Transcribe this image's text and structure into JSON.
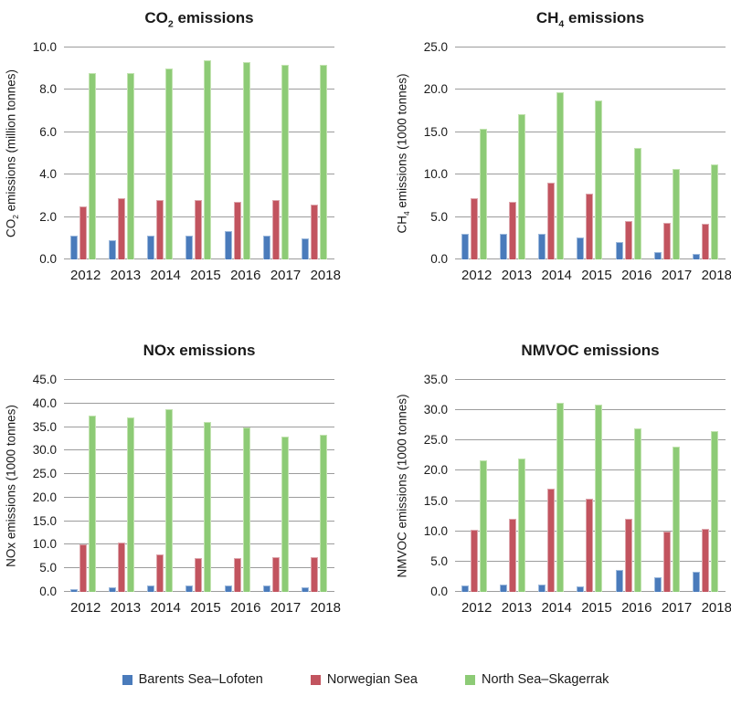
{
  "page": {
    "background": "#ffffff",
    "text_color": "#1a1a1a",
    "gridline_color": "#9c9c9c"
  },
  "years": [
    "2012",
    "2013",
    "2014",
    "2015",
    "2016",
    "2017",
    "2018"
  ],
  "legend": {
    "items": [
      {
        "label": "Barents Sea–Lofoten",
        "color": "#4a7bbb"
      },
      {
        "label": "Norwegian Sea",
        "color": "#c2545f"
      },
      {
        "label": "North Sea–Skagerrak",
        "color": "#8dcb76"
      }
    ]
  },
  "chart_data": [
    {
      "type": "bar",
      "title": "CO₂ emissions",
      "title_parts": [
        {
          "text": "CO"
        },
        {
          "text": "2",
          "sub": true
        },
        {
          "text": " emissions"
        }
      ],
      "ylabel": "CO₂ emissions (million tonnes)",
      "ylabel_parts": [
        {
          "text": "CO"
        },
        {
          "text": "2",
          "sub": true
        },
        {
          "text": " emissions (million tonnes)"
        }
      ],
      "xlabel": "",
      "categories": [
        "2012",
        "2013",
        "2014",
        "2015",
        "2016",
        "2017",
        "2018"
      ],
      "ylim": [
        0,
        10
      ],
      "ystep": 2,
      "grid": true,
      "legend_position": "shared-bottom",
      "series": [
        {
          "name": "Barents Sea–Lofoten",
          "color": "#4a7bbb",
          "color_light": "#9db9dc",
          "values": [
            1.1,
            0.9,
            1.1,
            1.1,
            1.35,
            1.1,
            1.0
          ]
        },
        {
          "name": "Norwegian Sea",
          "color": "#c2545f",
          "color_light": "#dda6ac",
          "values": [
            2.5,
            2.9,
            2.8,
            2.8,
            2.7,
            2.8,
            2.6
          ]
        },
        {
          "name": "North Sea–Skagerrak",
          "color": "#8dcb76",
          "color_light": "#c2e3b0",
          "values": [
            8.8,
            8.8,
            9.0,
            9.4,
            9.3,
            9.2,
            9.2
          ]
        }
      ]
    },
    {
      "type": "bar",
      "title": "CH₄ emissions",
      "title_parts": [
        {
          "text": "CH"
        },
        {
          "text": "4",
          "sub": true
        },
        {
          "text": " emissions"
        }
      ],
      "ylabel": "CH₄ emissions (1000 tonnes)",
      "ylabel_parts": [
        {
          "text": "CH"
        },
        {
          "text": "4",
          "sub": true
        },
        {
          "text": " emissions (1000 tonnes)"
        }
      ],
      "xlabel": "",
      "categories": [
        "2012",
        "2013",
        "2014",
        "2015",
        "2016",
        "2017",
        "2018"
      ],
      "ylim": [
        0,
        25
      ],
      "ystep": 5,
      "grid": true,
      "legend_position": "shared-bottom",
      "series": [
        {
          "name": "Barents Sea–Lofoten",
          "color": "#4a7bbb",
          "color_light": "#9db9dc",
          "values": [
            3.0,
            3.0,
            3.0,
            2.6,
            2.0,
            0.9,
            0.6
          ]
        },
        {
          "name": "Norwegian Sea",
          "color": "#c2545f",
          "color_light": "#dda6ac",
          "values": [
            7.2,
            6.8,
            9.1,
            7.8,
            4.5,
            4.3,
            4.2
          ]
        },
        {
          "name": "North Sea–Skagerrak",
          "color": "#8dcb76",
          "color_light": "#c2e3b0",
          "values": [
            15.4,
            17.1,
            19.7,
            18.8,
            13.1,
            10.7,
            11.2
          ]
        }
      ]
    },
    {
      "type": "bar",
      "title": "NOx emissions",
      "title_parts": [
        {
          "text": "NOx emissions"
        }
      ],
      "ylabel": "NOx emissions (1000 tonnes)",
      "ylabel_parts": [
        {
          "text": "NOx emissions (1000 tonnes)"
        }
      ],
      "xlabel": "",
      "categories": [
        "2012",
        "2013",
        "2014",
        "2015",
        "2016",
        "2017",
        "2018"
      ],
      "ylim": [
        0,
        45
      ],
      "ystep": 5,
      "grid": true,
      "legend_position": "shared-bottom",
      "series": [
        {
          "name": "Barents Sea–Lofoten",
          "color": "#4a7bbb",
          "color_light": "#9db9dc",
          "values": [
            0.5,
            0.9,
            1.3,
            1.35,
            1.35,
            1.35,
            0.9
          ]
        },
        {
          "name": "Norwegian Sea",
          "color": "#c2545f",
          "color_light": "#dda6ac",
          "values": [
            10.1,
            10.5,
            7.9,
            7.1,
            7.1,
            7.4,
            7.4
          ]
        },
        {
          "name": "North Sea–Skagerrak",
          "color": "#8dcb76",
          "color_light": "#c2e3b0",
          "values": [
            37.5,
            37.1,
            38.7,
            36.0,
            34.9,
            33.0,
            33.3
          ]
        }
      ]
    },
    {
      "type": "bar",
      "title": "NMVOC emissions",
      "title_parts": [
        {
          "text": "NMVOC emissions"
        }
      ],
      "ylabel": "NMVOC emissions (1000 tonnes)",
      "ylabel_parts": [
        {
          "text": "NMVOC emissions (1000 tonnes)"
        }
      ],
      "xlabel": "",
      "categories": [
        "2012",
        "2013",
        "2014",
        "2015",
        "2016",
        "2017",
        "2018"
      ],
      "ylim": [
        0,
        35
      ],
      "ystep": 5,
      "grid": true,
      "legend_position": "shared-bottom",
      "series": [
        {
          "name": "Barents Sea–Lofoten",
          "color": "#4a7bbb",
          "color_light": "#9db9dc",
          "values": [
            1.1,
            1.2,
            1.2,
            0.9,
            3.6,
            2.4,
            3.3
          ]
        },
        {
          "name": "Norwegian Sea",
          "color": "#c2545f",
          "color_light": "#dda6ac",
          "values": [
            10.2,
            12.0,
            17.0,
            15.4,
            12.0,
            9.9,
            10.4
          ]
        },
        {
          "name": "North Sea–Skagerrak",
          "color": "#8dcb76",
          "color_light": "#c2e3b0",
          "values": [
            21.7,
            22.0,
            31.2,
            31.0,
            27.0,
            24.0,
            26.6
          ]
        }
      ]
    }
  ]
}
